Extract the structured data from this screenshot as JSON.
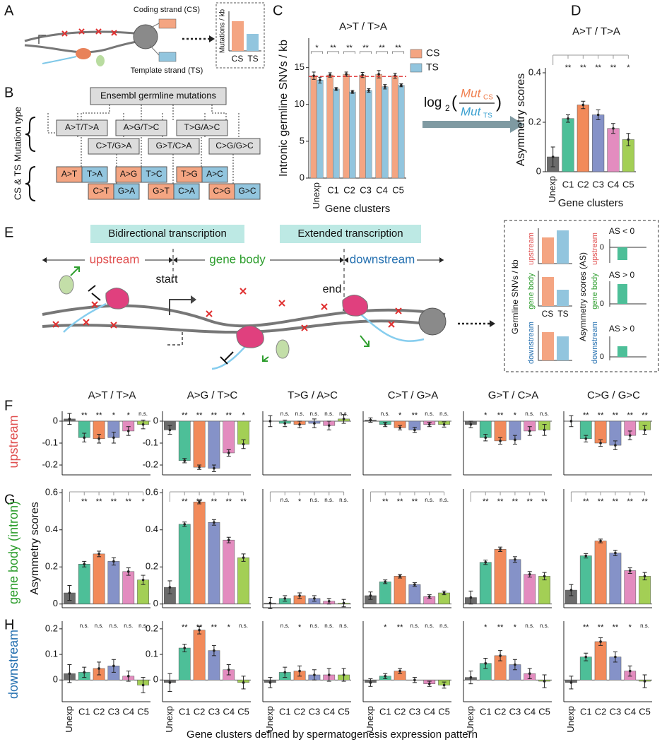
{
  "panel_labels": [
    "A",
    "B",
    "C",
    "D",
    "E",
    "F",
    "G",
    "H"
  ],
  "panel_a": {
    "coding_strand": "Coding strand (CS)",
    "template_strand": "Template strand (TS)",
    "ylabel": "Mutations / kb",
    "cs": "CS",
    "ts": "TS"
  },
  "panel_b": {
    "source": "Ensembl germline mutations",
    "types": [
      "A>T/T>A",
      "A>G/T>C",
      "T>G/A>C",
      "C>T/G>A",
      "G>T/C>A",
      "C>G/G>C"
    ],
    "type_label": "Mutation type",
    "strand_label": "CS & TS",
    "strand_pairs": [
      [
        "A>T",
        "T>A"
      ],
      [
        "A>G",
        "T>C"
      ],
      [
        "T>G",
        "A>C"
      ],
      [
        "C>T",
        "G>A"
      ],
      [
        "G>T",
        "C>A"
      ],
      [
        "C>G",
        "G>C"
      ]
    ]
  },
  "formula": {
    "log": "log",
    "base": "2",
    "mut": "Mut",
    "cs": "CS",
    "ts": "TS"
  },
  "panel_e": {
    "bidirectional": "Bidirectional transcription",
    "extended": "Extended transcription",
    "upstream": "upstream",
    "gene_body": "gene body",
    "downstream": "downstream",
    "start": "start",
    "end": "end"
  },
  "legend_box": {
    "snv_label": "Germline SNVs / kb",
    "regions": [
      "upstream",
      "gene body",
      "downstream"
    ],
    "cs": "CS",
    "ts": "TS",
    "as_label": "Asymmetry scores (AS)",
    "as_notes": [
      "AS < 0",
      "AS > 0",
      "AS > 0"
    ],
    "zero": "0"
  },
  "row_labels": [
    "upstream",
    "gene body (intron)",
    "downstream"
  ],
  "bottom_xlabel": "Gene clusters defined by spermatogenesis expression pattern",
  "chart_data": [
    {
      "type": "grouped_bar",
      "title": "A>T / T>A",
      "ylabel": "Intronic germline SNVs / kb",
      "xlabel": "Gene clusters",
      "categories": [
        "Unexp",
        "C1",
        "C2",
        "C3",
        "C4",
        "C5"
      ],
      "series": [
        {
          "name": "CS",
          "color": "#f4a582",
          "values": [
            13.9,
            14.0,
            14.1,
            14.0,
            14.1,
            13.9
          ],
          "errors": [
            0.5,
            0.3,
            0.3,
            0.35,
            0.5,
            0.35
          ]
        },
        {
          "name": "TS",
          "color": "#92c5de",
          "values": [
            13.3,
            12.1,
            11.7,
            11.9,
            12.4,
            12.6
          ],
          "errors": [
            0.4,
            0.2,
            0.2,
            0.25,
            0.3,
            0.2
          ]
        }
      ],
      "significance": [
        "*",
        "**",
        "**",
        "**",
        "**",
        "**"
      ],
      "reference_line": 13.8,
      "reference_color": "#e03030",
      "ylim": [
        0,
        19
      ],
      "yticks": [
        0,
        5,
        10,
        15
      ]
    },
    {
      "type": "bar",
      "title": "A>T / T>A",
      "ylabel": "Asymmetry scores",
      "xlabel": "Gene clusters",
      "categories": [
        "Unexp",
        "C1",
        "C2",
        "C3",
        "C4",
        "C5"
      ],
      "colors": [
        "#6b6b6b",
        "#4dbf98",
        "#f28a5a",
        "#8592c8",
        "#e38cbf",
        "#a3cf55"
      ],
      "values": [
        0.06,
        0.215,
        0.27,
        0.23,
        0.175,
        0.13
      ],
      "errors": [
        0.04,
        0.015,
        0.015,
        0.02,
        0.02,
        0.025
      ],
      "significance": [
        "**",
        "**",
        "**",
        "**",
        "*"
      ],
      "bracket": true,
      "ylim": [
        0,
        0.42
      ],
      "yticks": [
        0,
        0.2,
        0.4
      ]
    },
    {
      "type": "bar",
      "title": "A>T / T>A",
      "colors": [
        "#6b6b6b",
        "#4dbf98",
        "#f28a5a",
        "#8592c8",
        "#e38cbf",
        "#a3cf55"
      ],
      "values": [
        0.01,
        -0.075,
        -0.08,
        -0.075,
        -0.045,
        -0.015
      ],
      "errors": [
        0.025,
        0.02,
        0.02,
        0.025,
        0.02,
        0.02
      ],
      "significance": [
        "**",
        "**",
        "*",
        "*",
        "n.s."
      ],
      "ylim": [
        -0.245,
        0.045
      ],
      "yticks": [
        -0.2,
        -0.1,
        0
      ]
    },
    {
      "type": "bar",
      "title": "A>G / T>C",
      "colors": [
        "#6b6b6b",
        "#4dbf98",
        "#f28a5a",
        "#8592c8",
        "#e38cbf",
        "#a3cf55"
      ],
      "values": [
        -0.04,
        -0.18,
        -0.21,
        -0.215,
        -0.145,
        -0.105
      ],
      "errors": [
        0.02,
        0.01,
        0.01,
        0.015,
        0.015,
        0.02
      ],
      "significance": [
        "**",
        "**",
        "**",
        "**",
        "*"
      ],
      "ylim": [
        -0.245,
        0.045
      ],
      "yticks": [
        -0.2,
        -0.1,
        0
      ]
    },
    {
      "type": "bar",
      "title": "T>G / A>C",
      "colors": [
        "#6b6b6b",
        "#4dbf98",
        "#f28a5a",
        "#8592c8",
        "#e38cbf",
        "#a3cf55"
      ],
      "values": [
        0,
        -0.01,
        -0.015,
        -0.01,
        -0.02,
        0.01
      ],
      "errors": [
        0.025,
        0.015,
        0.015,
        0.02,
        0.02,
        0.02
      ],
      "significance": [
        "n.s.",
        "n.s.",
        "n.s.",
        "n.s.",
        "n.s."
      ],
      "ylim": [
        -0.245,
        0.045
      ]
    },
    {
      "type": "bar",
      "title": "C>T / G>A",
      "colors": [
        "#6b6b6b",
        "#4dbf98",
        "#f28a5a",
        "#8592c8",
        "#e38cbf",
        "#a3cf55"
      ],
      "values": [
        0.005,
        -0.015,
        -0.03,
        -0.04,
        -0.015,
        -0.015
      ],
      "errors": [
        0.01,
        0.01,
        0.01,
        0.012,
        0.01,
        0.012
      ],
      "significance": [
        "n.s.",
        "*",
        "**",
        "n.s.",
        "n.s."
      ],
      "ylim": [
        -0.245,
        0.045
      ]
    },
    {
      "type": "bar",
      "title": "G>T / C>A",
      "colors": [
        "#6b6b6b",
        "#4dbf98",
        "#f28a5a",
        "#8592c8",
        "#e38cbf",
        "#a3cf55"
      ],
      "values": [
        -0.015,
        -0.075,
        -0.09,
        -0.085,
        -0.045,
        -0.04
      ],
      "errors": [
        0.015,
        0.015,
        0.015,
        0.02,
        0.02,
        0.025
      ],
      "significance": [
        "*",
        "**",
        "*",
        "n.s.",
        "n.s."
      ],
      "ylim": [
        -0.245,
        0.045
      ]
    },
    {
      "type": "bar",
      "title": "C>G / G>C",
      "colors": [
        "#6b6b6b",
        "#4dbf98",
        "#f28a5a",
        "#8592c8",
        "#e38cbf",
        "#a3cf55"
      ],
      "values": [
        0,
        -0.08,
        -0.1,
        -0.11,
        -0.065,
        -0.04
      ],
      "errors": [
        0.025,
        0.015,
        0.015,
        0.02,
        0.02,
        0.02
      ],
      "significance": [
        "**",
        "**",
        "**",
        "**",
        "**"
      ],
      "ylim": [
        -0.245,
        0.045
      ]
    },
    {
      "type": "bar",
      "ylabel": "Asymmetry scores",
      "colors": [
        "#6b6b6b",
        "#4dbf98",
        "#f28a5a",
        "#8592c8",
        "#e38cbf",
        "#a3cf55"
      ],
      "values": [
        0.06,
        0.215,
        0.27,
        0.23,
        0.175,
        0.13
      ],
      "errors": [
        0.04,
        0.015,
        0.015,
        0.02,
        0.02,
        0.025
      ],
      "significance": [
        "**",
        "**",
        "**",
        "**",
        "*"
      ],
      "bracket": true,
      "ylim": [
        -0.02,
        0.62
      ],
      "yticks": [
        0,
        0.2,
        0.4,
        0.6
      ]
    },
    {
      "type": "bar",
      "colors": [
        "#6b6b6b",
        "#4dbf98",
        "#f28a5a",
        "#8592c8",
        "#e38cbf",
        "#a3cf55"
      ],
      "values": [
        0.09,
        0.43,
        0.55,
        0.44,
        0.345,
        0.25
      ],
      "errors": [
        0.035,
        0.012,
        0.01,
        0.015,
        0.015,
        0.02
      ],
      "significance": [
        "**",
        "**",
        "**",
        "**",
        "**"
      ],
      "bracket": true,
      "ylim": [
        -0.02,
        0.62
      ],
      "yticks": [
        0,
        0.2,
        0.4,
        0.6
      ]
    },
    {
      "type": "bar",
      "colors": [
        "#6b6b6b",
        "#4dbf98",
        "#f28a5a",
        "#8592c8",
        "#e38cbf",
        "#a3cf55"
      ],
      "values": [
        0.005,
        0.03,
        0.045,
        0.03,
        0.015,
        0.005
      ],
      "errors": [
        0.03,
        0.015,
        0.015,
        0.015,
        0.015,
        0.02
      ],
      "significance": [
        "n.s.",
        "*",
        "n.s.",
        "n.s.",
        "n.s."
      ],
      "bracket": true,
      "ylim": [
        -0.02,
        0.62
      ]
    },
    {
      "type": "bar",
      "colors": [
        "#6b6b6b",
        "#4dbf98",
        "#f28a5a",
        "#8592c8",
        "#e38cbf",
        "#a3cf55"
      ],
      "values": [
        0.045,
        0.12,
        0.15,
        0.105,
        0.04,
        0.06
      ],
      "errors": [
        0.02,
        0.01,
        0.01,
        0.01,
        0.01,
        0.01
      ],
      "significance": [
        "**",
        "**",
        "**",
        "n.s.",
        "n.s."
      ],
      "bracket": true,
      "ylim": [
        -0.02,
        0.62
      ]
    },
    {
      "type": "bar",
      "colors": [
        "#6b6b6b",
        "#4dbf98",
        "#f28a5a",
        "#8592c8",
        "#e38cbf",
        "#a3cf55"
      ],
      "values": [
        0.035,
        0.225,
        0.295,
        0.24,
        0.16,
        0.15
      ],
      "errors": [
        0.035,
        0.012,
        0.012,
        0.015,
        0.015,
        0.02
      ],
      "significance": [
        "**",
        "**",
        "**",
        "**",
        "**"
      ],
      "bracket": true,
      "ylim": [
        -0.02,
        0.62
      ]
    },
    {
      "type": "bar",
      "colors": [
        "#6b6b6b",
        "#4dbf98",
        "#f28a5a",
        "#8592c8",
        "#e38cbf",
        "#a3cf55"
      ],
      "values": [
        0.075,
        0.26,
        0.34,
        0.275,
        0.18,
        0.15
      ],
      "errors": [
        0.03,
        0.012,
        0.01,
        0.015,
        0.015,
        0.02
      ],
      "significance": [
        "**",
        "**",
        "**",
        "**",
        "**"
      ],
      "bracket": true,
      "ylim": [
        -0.02,
        0.62
      ]
    },
    {
      "type": "bar",
      "categories": [
        "Unexp",
        "C1",
        "C2",
        "C3",
        "C4",
        "C5"
      ],
      "colors": [
        "#6b6b6b",
        "#4dbf98",
        "#f28a5a",
        "#8592c8",
        "#e38cbf",
        "#a3cf55"
      ],
      "values": [
        0.025,
        0.03,
        0.045,
        0.055,
        0.015,
        -0.02
      ],
      "errors": [
        0.035,
        0.02,
        0.025,
        0.025,
        0.02,
        0.03
      ],
      "significance": [
        "n.s.",
        "n.s.",
        "n.s.",
        "n.s.",
        "n.s."
      ],
      "ylim": [
        -0.085,
        0.23
      ],
      "yticks": [
        0,
        0.1,
        0.2
      ]
    },
    {
      "type": "bar",
      "categories": [
        "Unexp",
        "C1",
        "C2",
        "C3",
        "C4",
        "C5"
      ],
      "colors": [
        "#6b6b6b",
        "#4dbf98",
        "#f28a5a",
        "#8592c8",
        "#e38cbf",
        "#a3cf55"
      ],
      "values": [
        -0.01,
        0.125,
        0.195,
        0.115,
        0.04,
        -0.01
      ],
      "errors": [
        0.035,
        0.015,
        0.015,
        0.02,
        0.02,
        0.025
      ],
      "significance": [
        "**",
        "**",
        "**",
        "*",
        "n.s."
      ],
      "ylim": [
        -0.085,
        0.23
      ],
      "yticks": [
        0,
        0.1,
        0.2
      ]
    },
    {
      "type": "bar",
      "categories": [
        "Unexp",
        "C1",
        "C2",
        "C3",
        "C4",
        "C5"
      ],
      "colors": [
        "#6b6b6b",
        "#4dbf98",
        "#f28a5a",
        "#8592c8",
        "#e38cbf",
        "#a3cf55"
      ],
      "values": [
        -0.01,
        0.03,
        0.035,
        0.02,
        0.02,
        0.02
      ],
      "errors": [
        0.02,
        0.02,
        0.02,
        0.02,
        0.025,
        0.025
      ],
      "significance": [
        "n.s.",
        "*",
        "n.s.",
        "n.s.",
        "n.s."
      ],
      "ylim": [
        -0.085,
        0.23
      ]
    },
    {
      "type": "bar",
      "categories": [
        "Unexp",
        "C1",
        "C2",
        "C3",
        "C4",
        "C5"
      ],
      "colors": [
        "#6b6b6b",
        "#4dbf98",
        "#f28a5a",
        "#8592c8",
        "#e38cbf",
        "#a3cf55"
      ],
      "values": [
        -0.01,
        0.015,
        0.035,
        0,
        -0.015,
        -0.02
      ],
      "errors": [
        0.015,
        0.01,
        0.01,
        0.01,
        0.01,
        0.012
      ],
      "significance": [
        "*",
        "**",
        "n.s.",
        "n.s.",
        "n.s."
      ],
      "ylim": [
        -0.085,
        0.23
      ]
    },
    {
      "type": "bar",
      "categories": [
        "Unexp",
        "C1",
        "C2",
        "C3",
        "C4",
        "C5"
      ],
      "colors": [
        "#6b6b6b",
        "#4dbf98",
        "#f28a5a",
        "#8592c8",
        "#e38cbf",
        "#a3cf55"
      ],
      "values": [
        0.01,
        0.065,
        0.095,
        0.06,
        0.025,
        -0.005
      ],
      "errors": [
        0.025,
        0.02,
        0.02,
        0.02,
        0.02,
        0.025
      ],
      "significance": [
        "*",
        "**",
        "*",
        "n.s.",
        "n.s."
      ],
      "ylim": [
        -0.085,
        0.23
      ]
    },
    {
      "type": "bar",
      "categories": [
        "Unexp",
        "C1",
        "C2",
        "C3",
        "C4",
        "C5"
      ],
      "colors": [
        "#6b6b6b",
        "#4dbf98",
        "#f28a5a",
        "#8592c8",
        "#e38cbf",
        "#a3cf55"
      ],
      "values": [
        -0.01,
        0.09,
        0.15,
        0.09,
        0.035,
        -0.005
      ],
      "errors": [
        0.025,
        0.015,
        0.015,
        0.02,
        0.02,
        0.025
      ],
      "significance": [
        "**",
        "**",
        "**",
        "*",
        "n.s."
      ],
      "ylim": [
        -0.085,
        0.23
      ]
    }
  ]
}
